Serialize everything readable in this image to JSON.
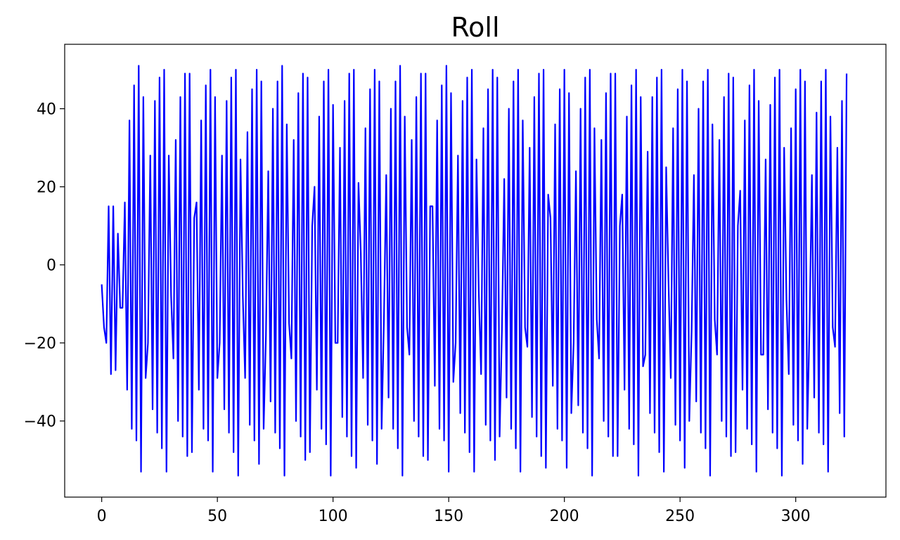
{
  "chart_data": {
    "type": "line",
    "title": "Roll",
    "xlabel": "",
    "ylabel": "",
    "xlim": [
      -16,
      339
    ],
    "ylim": [
      -59.5,
      56.5
    ],
    "xticks": [
      0,
      50,
      100,
      150,
      200,
      250,
      300
    ],
    "yticks": [
      -40,
      -20,
      0,
      20,
      40
    ],
    "xtick_labels": [
      "0",
      "50",
      "100",
      "150",
      "200",
      "250",
      "300"
    ],
    "ytick_labels": [
      "−40",
      "−20",
      "0",
      "20",
      "40"
    ],
    "grid": false,
    "series": [
      {
        "color": "#0000ff",
        "x_start": 0,
        "x_step": 1,
        "values": [
          -5,
          -16,
          -20,
          15,
          -28,
          15,
          -27,
          8,
          -11,
          -11,
          16,
          -32,
          37,
          -42,
          46,
          -45,
          51,
          -53,
          43,
          -29,
          -20,
          28,
          -37,
          42,
          -43,
          48,
          -47,
          50,
          -53,
          28,
          -8,
          -24,
          32,
          -40,
          43,
          -44,
          49,
          -49,
          49,
          -48,
          12,
          16,
          -32,
          37,
          -42,
          46,
          -45,
          50,
          -53,
          43,
          -29,
          -20,
          28,
          -37,
          42,
          -43,
          48,
          -48,
          50,
          -54,
          27,
          -8,
          -29,
          34,
          -41,
          45,
          -45,
          50,
          -51,
          47,
          -42,
          -18,
          24,
          -35,
          40,
          -43,
          47,
          -47,
          51,
          -54,
          36,
          -15,
          -24,
          32,
          -40,
          44,
          -44,
          49,
          -50,
          48,
          -48,
          10,
          20,
          -32,
          38,
          -42,
          47,
          -46,
          50,
          -54,
          41,
          -20,
          -20,
          30,
          -39,
          42,
          -44,
          49,
          -49,
          50,
          -52,
          21,
          3,
          -29,
          35,
          -41,
          45,
          -45,
          50,
          -51,
          47,
          -42,
          -14,
          23,
          -34,
          40,
          -42,
          47,
          -47,
          51,
          -54,
          38,
          -16,
          -23,
          32,
          -40,
          43,
          -44,
          49,
          -49,
          49,
          -50,
          15,
          15,
          -31,
          37,
          -42,
          46,
          -45,
          51,
          -53,
          44,
          -30,
          -20,
          28,
          -38,
          42,
          -43,
          48,
          -48,
          50,
          -53,
          27,
          -7,
          -28,
          35,
          -41,
          45,
          -45,
          50,
          -50,
          48,
          -44,
          -17,
          22,
          -34,
          40,
          -42,
          47,
          -47,
          50,
          -53,
          37,
          -16,
          -21,
          30,
          -39,
          43,
          -44,
          49,
          -49,
          50,
          -52,
          18,
          12,
          -31,
          36,
          -42,
          45,
          -45,
          50,
          -52,
          44,
          -38,
          -20,
          24,
          -36,
          40,
          -43,
          48,
          -47,
          50,
          -54,
          35,
          -14,
          -24,
          32,
          -40,
          44,
          -44,
          49,
          -49,
          49,
          -49,
          10,
          18,
          -32,
          38,
          -42,
          46,
          -46,
          50,
          -54,
          43,
          -26,
          -23,
          29,
          -38,
          43,
          -43,
          48,
          -48,
          50,
          -53,
          25,
          -4,
          -29,
          35,
          -41,
          45,
          -45,
          50,
          -52,
          47,
          -40,
          -17,
          23,
          -35,
          40,
          -43,
          47,
          -47,
          50,
          -54,
          36,
          -14,
          -23,
          32,
          -40,
          43,
          -44,
          49,
          -49,
          48,
          -48,
          10,
          19,
          -32,
          37,
          -42,
          46,
          -46,
          50,
          -53,
          42,
          -23,
          -23,
          27,
          -37,
          41,
          -43,
          48,
          -47,
          50,
          -54,
          30,
          -9,
          -28,
          35,
          -41,
          45,
          -45,
          50,
          -51,
          47,
          -42,
          -15,
          23,
          -34,
          39,
          -43,
          47,
          -46,
          50,
          -53,
          38,
          -16,
          -21,
          30,
          -38,
          42,
          -44,
          49
        ]
      }
    ]
  }
}
